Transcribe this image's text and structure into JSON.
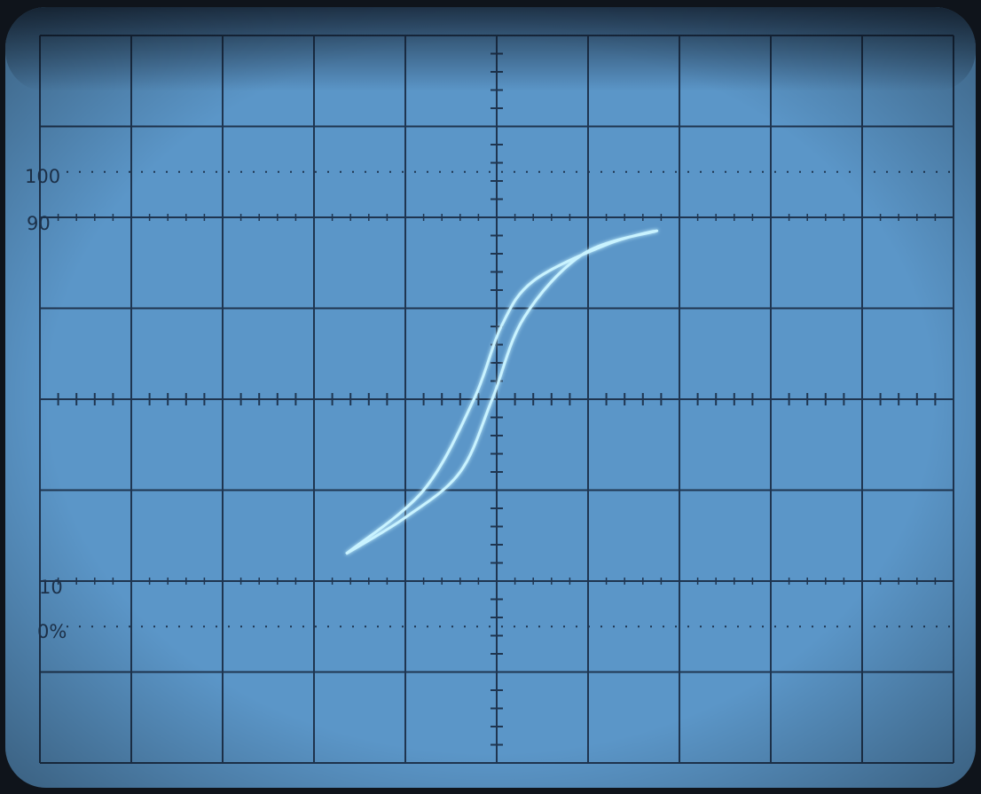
{
  "screen": {
    "bg_color": "#5b96c8",
    "grid_color": "#1f3550",
    "trace_color": "#c9f3ff"
  },
  "labels": {
    "l100": "100",
    "l90": "90",
    "l10": "10",
    "l0": "0%"
  },
  "graticule": {
    "divisions_x": 10,
    "divisions_y": 8,
    "minor_ticks_per_division": 5
  },
  "trace": {
    "shape": "hysteresis-loop",
    "points": [
      {
        "x": -1.65,
        "y": -1.7
      },
      {
        "x": -1.0,
        "y": -1.3
      },
      {
        "x": -0.4,
        "y": -0.8
      },
      {
        "x": -0.05,
        "y": 0.0
      },
      {
        "x": 0.3,
        "y": 0.9
      },
      {
        "x": 0.95,
        "y": 1.6
      },
      {
        "x": 1.75,
        "y": 1.85
      },
      {
        "x": 1.2,
        "y": 1.7
      },
      {
        "x": 0.4,
        "y": 1.3
      },
      {
        "x": 0.05,
        "y": 0.8
      },
      {
        "x": -0.25,
        "y": 0.0
      },
      {
        "x": -0.8,
        "y": -1.0
      },
      {
        "x": -1.65,
        "y": -1.7
      }
    ]
  }
}
